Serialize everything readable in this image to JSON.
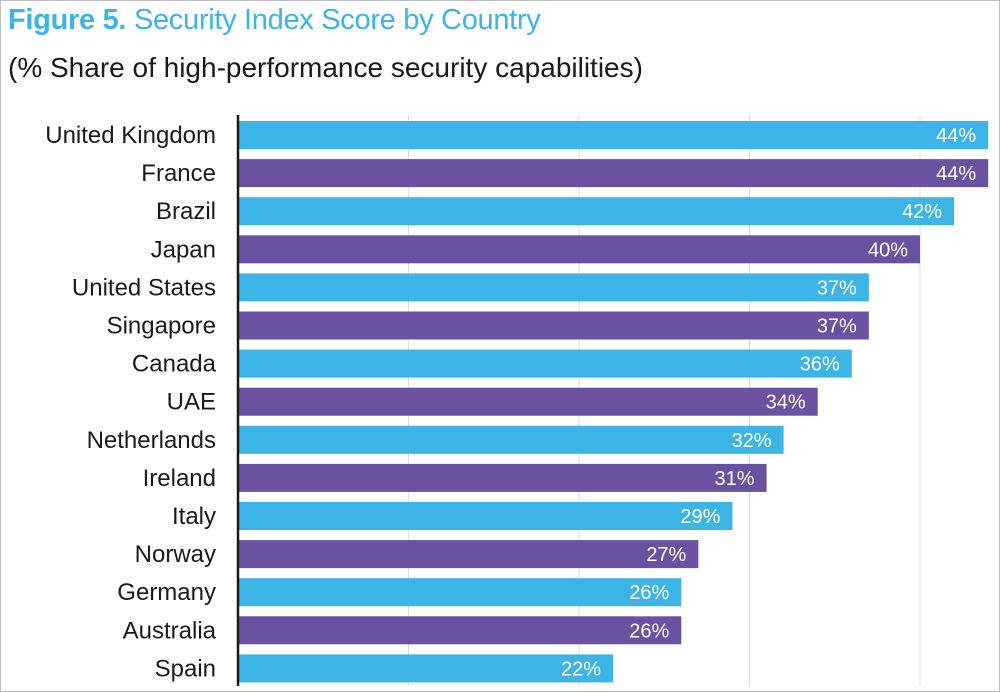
{
  "chart_data": {
    "type": "bar",
    "orientation": "horizontal",
    "title_prefix": "Figure 5.",
    "title": "Security Index Score by Country",
    "subtitle": "(% Share of high-performance security capabilities)",
    "xlabel": "",
    "ylabel": "",
    "xlim": [
      0,
      44
    ],
    "grid": true,
    "gridlines": [
      10,
      20,
      30,
      40
    ],
    "colors": [
      "#3db4e6",
      "#6a52a2"
    ],
    "categories": [
      "United Kingdom",
      "France",
      "Brazil",
      "Japan",
      "United States",
      "Singapore",
      "Canada",
      "UAE",
      "Netherlands",
      "Ireland",
      "Italy",
      "Norway",
      "Germany",
      "Australia",
      "Spain"
    ],
    "values": [
      44,
      44,
      42,
      40,
      37,
      37,
      36,
      34,
      32,
      31,
      29,
      27,
      26,
      26,
      22
    ],
    "labels": [
      "44%",
      "44%",
      "42%",
      "40%",
      "37%",
      "37%",
      "36%",
      "34%",
      "32%",
      "31%",
      "29%",
      "27%",
      "26%",
      "26%",
      "22%"
    ]
  }
}
